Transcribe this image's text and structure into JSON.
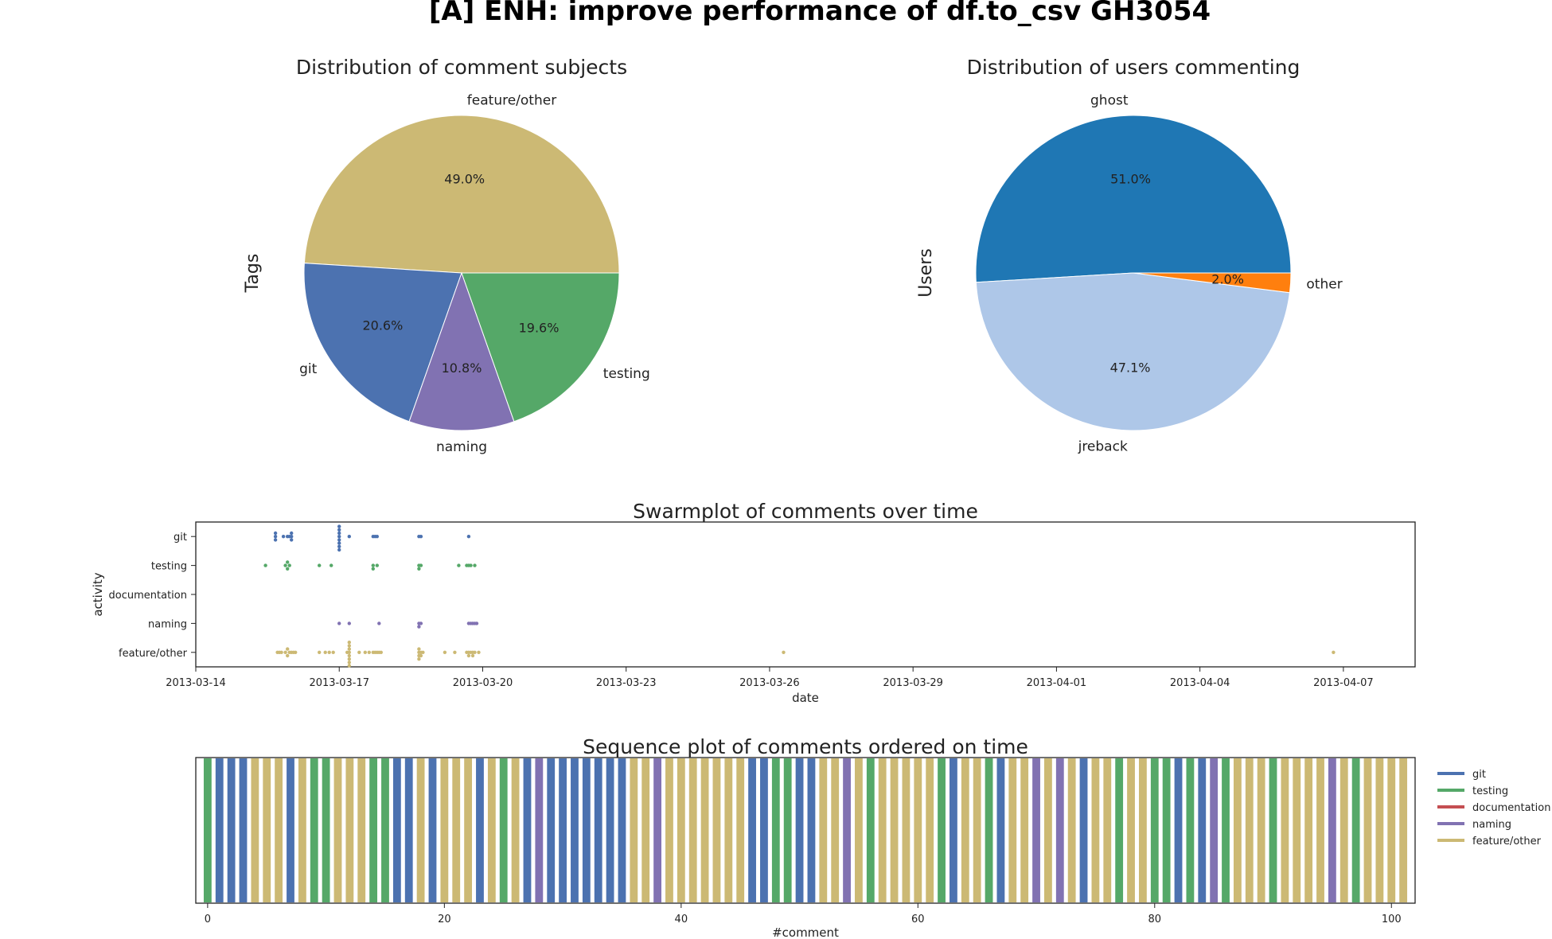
{
  "figure": {
    "title": "[A] ENH: improve performance of df.to_csv GH3054"
  },
  "chart_data": [
    {
      "type": "pie",
      "title": "Distribution of comment subjects",
      "ylabel": "Tags",
      "slices": [
        {
          "label": "feature/other",
          "value": 49.0,
          "pct_label": "49.0%",
          "color": "#ccb974"
        },
        {
          "label": "git",
          "value": 20.6,
          "pct_label": "20.6%",
          "color": "#4c72b0"
        },
        {
          "label": "naming",
          "value": 10.8,
          "pct_label": "10.8%",
          "color": "#8172b2"
        },
        {
          "label": "testing",
          "value": 19.6,
          "pct_label": "19.6%",
          "color": "#55a868"
        }
      ]
    },
    {
      "type": "pie",
      "title": "Distribution of users commenting",
      "ylabel": "Users",
      "slices": [
        {
          "label": "ghost",
          "value": 51.0,
          "pct_label": "51.0%",
          "color": "#1f77b4"
        },
        {
          "label": "jreback",
          "value": 47.1,
          "pct_label": "47.1%",
          "color": "#aec7e8"
        },
        {
          "label": "other",
          "value": 2.0,
          "pct_label": "2.0%",
          "color": "#ff7f0e"
        }
      ]
    },
    {
      "type": "scatter",
      "title": "Swarmplot of comments over time",
      "xlabel": "date",
      "ylabel": "activity",
      "categories": [
        "git",
        "testing",
        "documentation",
        "naming",
        "feature/other"
      ],
      "xlim": [
        "2013-03-14T00:00",
        "2013-04-08T12:00"
      ],
      "x_ticks": [
        "2013-03-14",
        "2013-03-17",
        "2013-03-20",
        "2013-03-23",
        "2013-03-26",
        "2013-03-29",
        "2013-04-01",
        "2013-04-04",
        "2013-04-07"
      ],
      "series": [
        {
          "category": "git",
          "color": "#4c72b0",
          "x": [
            "2013-03-15T16:00",
            "2013-03-15T16:00",
            "2013-03-15T16:00",
            "2013-03-15T20:00",
            "2013-03-15T22:00",
            "2013-03-15T23:00",
            "2013-03-16T00:00",
            "2013-03-16T00:00",
            "2013-03-16T00:00",
            "2013-03-17T00:00",
            "2013-03-17T00:00",
            "2013-03-17T00:00",
            "2013-03-17T00:00",
            "2013-03-17T00:00",
            "2013-03-17T00:00",
            "2013-03-17T00:00",
            "2013-03-17T00:00",
            "2013-03-17T05:00",
            "2013-03-17T17:00",
            "2013-03-17T18:00",
            "2013-03-17T19:00",
            "2013-03-18T16:00",
            "2013-03-18T17:00",
            "2013-03-19T17:00"
          ]
        },
        {
          "category": "testing",
          "color": "#55a868",
          "x": [
            "2013-03-15T11:00",
            "2013-03-15T21:00",
            "2013-03-15T22:00",
            "2013-03-15T22:00",
            "2013-03-15T23:00",
            "2013-03-16T14:00",
            "2013-03-16T20:00",
            "2013-03-17T17:00",
            "2013-03-17T17:00",
            "2013-03-17T19:00",
            "2013-03-18T16:00",
            "2013-03-18T16:00",
            "2013-03-18T17:00",
            "2013-03-19T12:00",
            "2013-03-19T16:00",
            "2013-03-19T17:00",
            "2013-03-19T18:00",
            "2013-03-19T20:00"
          ]
        },
        {
          "category": "documentation",
          "color": "#c44e52",
          "x": []
        },
        {
          "category": "naming",
          "color": "#8172b2",
          "x": [
            "2013-03-17T00:00",
            "2013-03-17T05:00",
            "2013-03-17T20:00",
            "2013-03-18T16:00",
            "2013-03-18T16:00",
            "2013-03-18T17:00",
            "2013-03-19T17:00",
            "2013-03-19T18:00",
            "2013-03-19T19:00",
            "2013-03-19T20:00",
            "2013-03-19T21:00"
          ]
        },
        {
          "category": "feature/other",
          "color": "#ccb974",
          "x": [
            "2013-03-15T17:00",
            "2013-03-15T18:00",
            "2013-03-15T19:00",
            "2013-03-15T21:00",
            "2013-03-15T22:00",
            "2013-03-15T22:00",
            "2013-03-15T23:00",
            "2013-03-16T00:00",
            "2013-03-16T01:00",
            "2013-03-16T02:00",
            "2013-03-16T14:00",
            "2013-03-16T17:00",
            "2013-03-16T19:00",
            "2013-03-16T21:00",
            "2013-03-17T04:00",
            "2013-03-17T05:00",
            "2013-03-17T05:00",
            "2013-03-17T05:00",
            "2013-03-17T05:00",
            "2013-03-17T05:00",
            "2013-03-17T05:00",
            "2013-03-17T05:00",
            "2013-03-17T05:00",
            "2013-03-17T10:00",
            "2013-03-17T13:00",
            "2013-03-17T15:00",
            "2013-03-17T17:00",
            "2013-03-17T18:00",
            "2013-03-17T19:00",
            "2013-03-17T20:00",
            "2013-03-17T21:00",
            "2013-03-18T16:00",
            "2013-03-18T16:00",
            "2013-03-18T16:00",
            "2013-03-18T16:00",
            "2013-03-18T17:00",
            "2013-03-18T17:00",
            "2013-03-18T18:00",
            "2013-03-19T05:00",
            "2013-03-19T10:00",
            "2013-03-19T16:00",
            "2013-03-19T17:00",
            "2013-03-19T17:00",
            "2013-03-19T18:00",
            "2013-03-19T19:00",
            "2013-03-19T19:00",
            "2013-03-19T20:00",
            "2013-03-19T22:00",
            "2013-03-26T07:00",
            "2013-04-06T19:00"
          ]
        }
      ]
    },
    {
      "type": "bar",
      "title": "Sequence plot of comments ordered on time",
      "xlabel": "#comment",
      "xlim": [
        -1,
        102
      ],
      "x_ticks": [
        0,
        20,
        40,
        60,
        80,
        100
      ],
      "legend": [
        "git",
        "testing",
        "documentation",
        "naming",
        "feature/other"
      ],
      "legend_colors": [
        "#4c72b0",
        "#55a868",
        "#c44e52",
        "#8172b2",
        "#ccb974"
      ],
      "sequence": [
        "testing",
        "git",
        "git",
        "git",
        "feature/other",
        "feature/other",
        "feature/other",
        "git",
        "feature/other",
        "testing",
        "testing",
        "feature/other",
        "feature/other",
        "feature/other",
        "testing",
        "testing",
        "git",
        "git",
        "feature/other",
        "git",
        "feature/other",
        "feature/other",
        "feature/other",
        "git",
        "feature/other",
        "testing",
        "feature/other",
        "git",
        "naming",
        "git",
        "git",
        "git",
        "git",
        "git",
        "git",
        "git",
        "feature/other",
        "feature/other",
        "naming",
        "feature/other",
        "feature/other",
        "feature/other",
        "feature/other",
        "feature/other",
        "feature/other",
        "feature/other",
        "git",
        "git",
        "testing",
        "testing",
        "git",
        "git",
        "feature/other",
        "feature/other",
        "naming",
        "feature/other",
        "testing",
        "feature/other",
        "feature/other",
        "feature/other",
        "feature/other",
        "feature/other",
        "testing",
        "git",
        "feature/other",
        "feature/other",
        "testing",
        "git",
        "feature/other",
        "feature/other",
        "naming",
        "feature/other",
        "naming",
        "feature/other",
        "git",
        "feature/other",
        "feature/other",
        "testing",
        "feature/other",
        "feature/other",
        "testing",
        "testing",
        "git",
        "testing",
        "git",
        "naming",
        "testing",
        "feature/other",
        "feature/other",
        "feature/other",
        "testing",
        "feature/other",
        "feature/other",
        "feature/other",
        "feature/other",
        "naming",
        "feature/other",
        "testing",
        "feature/other",
        "feature/other",
        "feature/other",
        "feature/other"
      ]
    }
  ]
}
